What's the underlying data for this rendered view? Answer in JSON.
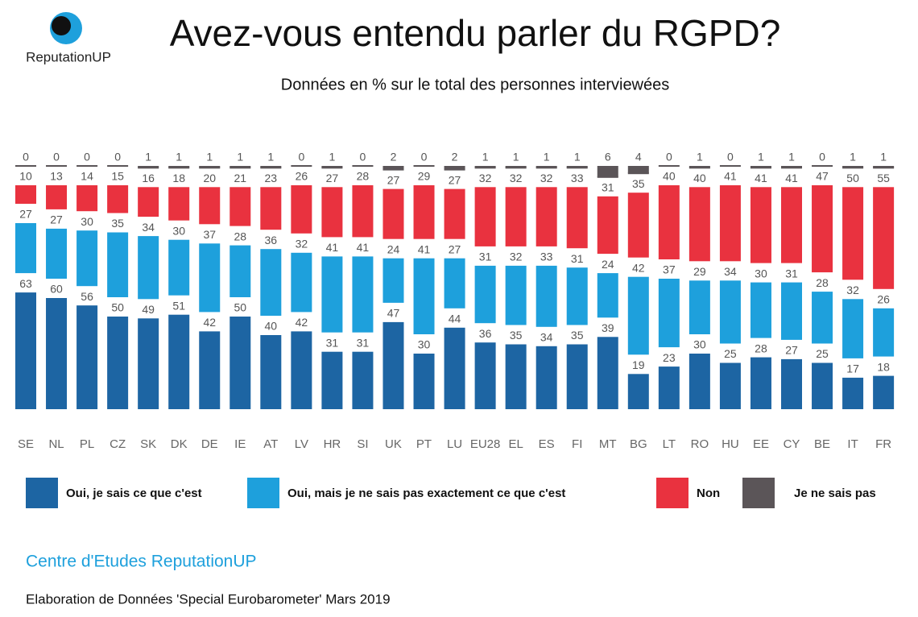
{
  "logo": "ReputationUP",
  "chart_data": {
    "type": "bar",
    "stacked": true,
    "title": "Avez-vous entendu parler du RGPD?",
    "subtitle": "Données en % sur le total des personnes interviewées",
    "categories": [
      "SE",
      "NL",
      "PL",
      "CZ",
      "SK",
      "DK",
      "DE",
      "IE",
      "AT",
      "LV",
      "HR",
      "SI",
      "UK",
      "PT",
      "LU",
      "EU28",
      "EL",
      "ES",
      "FI",
      "MT",
      "BG",
      "LT",
      "RO",
      "HU",
      "EE",
      "CY",
      "BE",
      "IT",
      "FR"
    ],
    "series": [
      {
        "name": "Oui,  je sais ce que c'est",
        "color": "#1d65a3",
        "values": [
          63,
          60,
          56,
          50,
          49,
          51,
          42,
          50,
          40,
          42,
          31,
          31,
          47,
          30,
          44,
          36,
          35,
          34,
          35,
          39,
          19,
          23,
          30,
          25,
          28,
          27,
          25,
          17,
          18
        ]
      },
      {
        "name": "Oui, mais je ne sais pas exactement ce que c'est",
        "color": "#1ea0dc",
        "values": [
          27,
          27,
          30,
          35,
          34,
          30,
          37,
          28,
          36,
          32,
          41,
          41,
          24,
          41,
          27,
          31,
          32,
          33,
          31,
          24,
          42,
          37,
          29,
          34,
          30,
          31,
          28,
          32,
          26
        ]
      },
      {
        "name": "Non",
        "color": "#e9323f",
        "values": [
          10,
          13,
          14,
          15,
          16,
          18,
          20,
          21,
          23,
          26,
          27,
          28,
          27,
          29,
          27,
          32,
          32,
          32,
          33,
          31,
          35,
          40,
          40,
          41,
          41,
          41,
          47,
          50,
          55
        ]
      },
      {
        "name": "Je ne sais pas",
        "color": "#5b5558",
        "values": [
          0,
          0,
          0,
          0,
          1,
          1,
          1,
          1,
          1,
          0,
          1,
          0,
          2,
          0,
          2,
          1,
          1,
          1,
          1,
          6,
          4,
          0,
          1,
          0,
          1,
          1,
          0,
          1,
          1
        ]
      }
    ],
    "source": "Centre d'Etudes ReputationUP",
    "note": "Elaboration de Données 'Special Eurobarometer' Mars 2019"
  }
}
